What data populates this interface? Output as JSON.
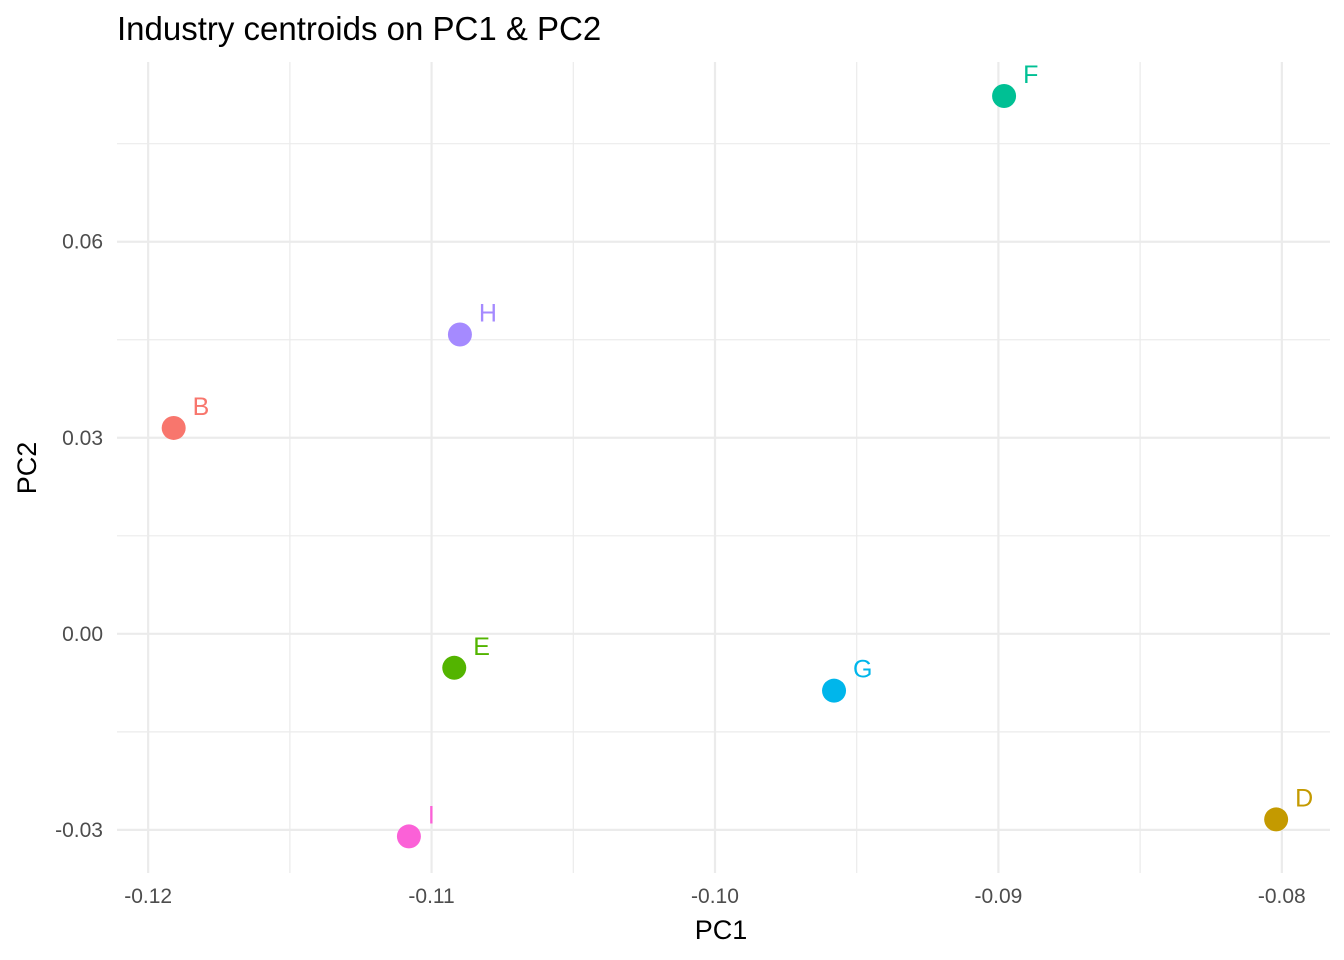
{
  "chart_data": {
    "type": "scatter",
    "title": "Industry centroids on PC1 & PC2",
    "xlabel": "PC1",
    "ylabel": "PC2",
    "xlim": [
      -0.1211,
      -0.0783
    ],
    "ylim": [
      -0.0366,
      0.0875
    ],
    "x_ticks": [
      -0.12,
      -0.11,
      -0.1,
      -0.09,
      -0.08
    ],
    "x_tick_labels": [
      "-0.12",
      "-0.11",
      "-0.10",
      "-0.09",
      "-0.08"
    ],
    "y_ticks": [
      -0.03,
      0.0,
      0.03,
      0.06
    ],
    "y_tick_labels": [
      "-0.03",
      "0.00",
      "0.03",
      "0.06"
    ],
    "grid": true,
    "legend": "none",
    "points": [
      {
        "label": "B",
        "x": -0.1191,
        "y": 0.0315,
        "color": "#F8766D"
      },
      {
        "label": "D",
        "x": -0.0802,
        "y": -0.0284,
        "color": "#C49A00"
      },
      {
        "label": "E",
        "x": -0.1092,
        "y": -0.0052,
        "color": "#53B400"
      },
      {
        "label": "F",
        "x": -0.0898,
        "y": 0.0823,
        "color": "#00C094"
      },
      {
        "label": "G",
        "x": -0.0958,
        "y": -0.0087,
        "color": "#00B6EB"
      },
      {
        "label": "H",
        "x": -0.109,
        "y": 0.0458,
        "color": "#A58AFF"
      },
      {
        "label": "I",
        "x": -0.1108,
        "y": -0.031,
        "color": "#FB61D7"
      }
    ]
  }
}
